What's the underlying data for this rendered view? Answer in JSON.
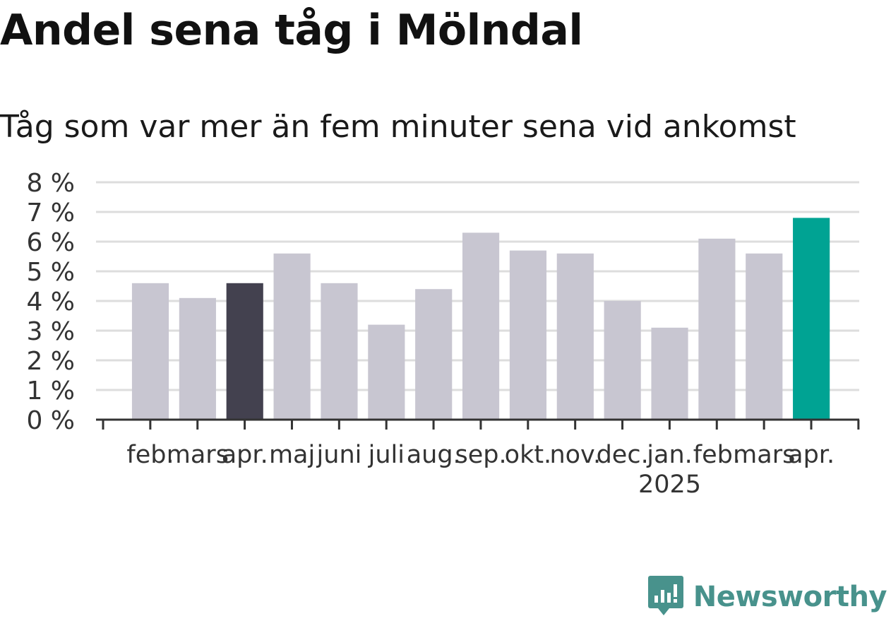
{
  "title": "Andel sena tåg i Mölndal",
  "subtitle": "Tåg som var mer än fem minuter sena vid ankomst",
  "brand": {
    "name": "Newsworthy",
    "icon": "newsworthy-logo-icon",
    "color": "#48928c"
  },
  "colors": {
    "default_bar": "#c8c6d1",
    "previous_year_bar": "#43414f",
    "current_bar": "#00a393",
    "grid": "#dddddd",
    "axis": "#333333",
    "text": "#333333"
  },
  "chart_data": {
    "type": "bar",
    "title": "Andel sena tåg i Mölndal",
    "subtitle": "Tåg som var mer än fem minuter sena vid ankomst",
    "categories": [
      "feb.",
      "mars",
      "apr.",
      "maj",
      "juni",
      "juli",
      "aug.",
      "sep.",
      "okt.",
      "nov.",
      "dec.",
      "jan.",
      "feb.",
      "mars",
      "apr."
    ],
    "year_labels": [
      {
        "category_index": 11,
        "label": "2025"
      }
    ],
    "values": [
      4.6,
      4.1,
      4.6,
      5.6,
      4.6,
      3.2,
      4.4,
      6.3,
      5.7,
      5.6,
      4.0,
      3.1,
      6.1,
      5.6,
      6.8
    ],
    "unit": "%",
    "highlight": [
      {
        "index": 2,
        "role": "previous_year"
      },
      {
        "index": 14,
        "role": "current"
      }
    ],
    "yticks": [
      0,
      1,
      2,
      3,
      4,
      5,
      6,
      7,
      8
    ],
    "ytick_labels": [
      "0 %",
      "1 %",
      "2 %",
      "3 %",
      "4 %",
      "5 %",
      "6 %",
      "7 %",
      "8 %"
    ],
    "ylim": [
      0,
      8
    ],
    "xlabel": "",
    "ylabel": "",
    "grid": true,
    "legend": "none"
  }
}
